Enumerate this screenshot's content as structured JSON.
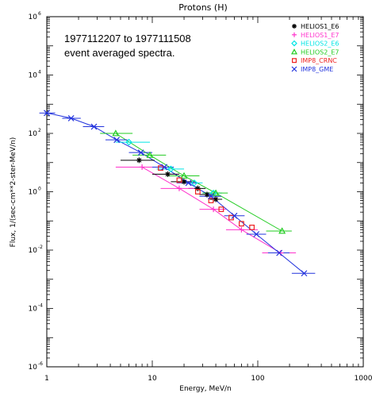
{
  "chart_data": {
    "type": "scatter",
    "title": "Protons (H)",
    "annotation_lines": [
      "1977112207 to 1977111508",
      "event averaged spectra."
    ],
    "xlabel": "Energy, MeV/n",
    "ylabel": "Flux, 1/(sec-cm**2-ster-MeV/n)",
    "x_scale": "log",
    "y_scale": "log",
    "xlim": [
      1,
      1000
    ],
    "ylim": [
      1e-06,
      1000000.0
    ],
    "x_ticks": [
      {
        "value": 1,
        "label": "1"
      },
      {
        "value": 10,
        "label": "10"
      },
      {
        "value": 100,
        "label": "100"
      },
      {
        "value": 1000,
        "label": "1000"
      }
    ],
    "y_ticks": [
      {
        "value": 1e-06,
        "label": "10",
        "exp": "-6"
      },
      {
        "value": 0.0001,
        "label": "10",
        "exp": "-4"
      },
      {
        "value": 0.01,
        "label": "10",
        "exp": "-2"
      },
      {
        "value": 1,
        "label": "10",
        "exp": "0"
      },
      {
        "value": 100.0,
        "label": "10",
        "exp": "2"
      },
      {
        "value": 10000.0,
        "label": "10",
        "exp": "4"
      },
      {
        "value": 1000000.0,
        "label": "10",
        "exp": "6"
      }
    ],
    "legend_position": "top-right",
    "series": [
      {
        "name": "HELIOS1_E6",
        "color": "#000000",
        "marker": "asterisk",
        "fit": false,
        "points": [
          {
            "x": 7.5,
            "y": 12.0,
            "xerr": [
              5.0,
              10.5
            ]
          },
          {
            "x": 14.0,
            "y": 4.0,
            "xerr": [
              10.0,
              18.0
            ]
          },
          {
            "x": 20.0,
            "y": 2.2,
            "xerr": [
              15.0,
              25.0
            ]
          },
          {
            "x": 27.0,
            "y": 1.3,
            "xerr": [
              22.0,
              32.0
            ]
          },
          {
            "x": 33.0,
            "y": 0.8,
            "xerr": [
              28.0,
              38.0
            ]
          },
          {
            "x": 40.0,
            "y": 0.55,
            "xerr": [
              35.0,
              46.0
            ]
          }
        ]
      },
      {
        "name": "HELIOS1_E7",
        "color": "#ff33cc",
        "marker": "plus",
        "fit": true,
        "points": [
          {
            "x": 8.0,
            "y": 7.0,
            "xerr": [
              4.5,
              13.0
            ]
          },
          {
            "x": 18.0,
            "y": 1.3,
            "xerr": [
              12.0,
              25.0
            ]
          },
          {
            "x": 38.0,
            "y": 0.25,
            "xerr": [
              28.0,
              50.0
            ]
          },
          {
            "x": 70.0,
            "y": 0.05,
            "xerr": [
              50.0,
              100.0
            ]
          },
          {
            "x": 165.0,
            "y": 0.008,
            "xerr": [
              110.0,
              230.0
            ]
          }
        ]
      },
      {
        "name": "HELIOS2_E6",
        "color": "#00e5e5",
        "marker": "diamond",
        "fit": false,
        "points": [
          {
            "x": 6.0,
            "y": 50.0,
            "xerr": [
              4.5,
              9.5
            ]
          },
          {
            "x": 15.0,
            "y": 6.0,
            "xerr": [
              11.0,
              20.0
            ]
          },
          {
            "x": 25.0,
            "y": 2.0,
            "xerr": [
              20.0,
              30.0
            ]
          },
          {
            "x": 38.0,
            "y": 0.9,
            "xerr": [
              30.0,
              46.0
            ]
          }
        ]
      },
      {
        "name": "HELIOS2_E7",
        "color": "#22cc22",
        "marker": "triangle",
        "fit": true,
        "points": [
          {
            "x": 4.5,
            "y": 100.0,
            "xerr": [
              3.2,
              6.5
            ]
          },
          {
            "x": 9.5,
            "y": 18.0,
            "xerr": [
              6.5,
              13.5
            ]
          },
          {
            "x": 20.0,
            "y": 3.5,
            "xerr": [
              14.0,
              28.0
            ]
          },
          {
            "x": 40.0,
            "y": 0.9,
            "xerr": [
              30.0,
              52.0
            ]
          },
          {
            "x": 170.0,
            "y": 0.045,
            "xerr": [
              120.0,
              210.0
            ]
          }
        ]
      },
      {
        "name": "IMP8_CRNC",
        "color": "#ee2222",
        "marker": "square",
        "fit": false,
        "points": [
          {
            "x": 12.0,
            "y": 6.5
          },
          {
            "x": 18.0,
            "y": 2.5
          },
          {
            "x": 27.0,
            "y": 1.0
          },
          {
            "x": 36.0,
            "y": 0.5
          },
          {
            "x": 45.0,
            "y": 0.25
          },
          {
            "x": 56.0,
            "y": 0.13
          },
          {
            "x": 70.0,
            "y": 0.08
          },
          {
            "x": 88.0,
            "y": 0.06
          }
        ]
      },
      {
        "name": "IMP8_GME",
        "color": "#2233dd",
        "marker": "x",
        "fit": true,
        "points": [
          {
            "x": 1.0,
            "y": 500.0,
            "xerr": [
              0.85,
              1.2
            ]
          },
          {
            "x": 1.7,
            "y": 330.0,
            "xerr": [
              1.4,
              2.1
            ]
          },
          {
            "x": 2.8,
            "y": 170.0,
            "xerr": [
              2.2,
              3.5
            ]
          },
          {
            "x": 4.6,
            "y": 60.0,
            "xerr": [
              3.6,
              5.8
            ]
          },
          {
            "x": 7.8,
            "y": 22.0,
            "xerr": [
              6.0,
              10.0
            ]
          },
          {
            "x": 13.0,
            "y": 7.0,
            "xerr": [
              10.0,
              16.0
            ]
          },
          {
            "x": 22.0,
            "y": 2.0,
            "xerr": [
              17.0,
              27.0
            ]
          },
          {
            "x": 36.0,
            "y": 0.7,
            "xerr": [
              28.0,
              45.0
            ]
          },
          {
            "x": 60.0,
            "y": 0.15,
            "xerr": [
              48.0,
              75.0
            ]
          },
          {
            "x": 97.0,
            "y": 0.035,
            "xerr": [
              78.0,
              120.0
            ]
          },
          {
            "x": 160.0,
            "y": 0.008,
            "xerr": [
              125.0,
              200.0
            ]
          },
          {
            "x": 275.0,
            "y": 0.0016,
            "xerr": [
              210.0,
              350.0
            ]
          }
        ]
      }
    ]
  }
}
